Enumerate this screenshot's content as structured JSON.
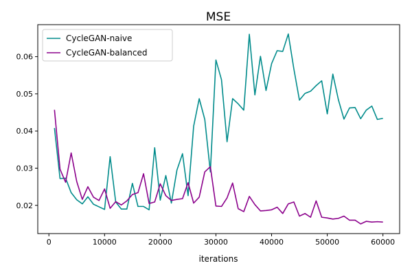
{
  "chart_data": {
    "type": "line",
    "title": "MSE",
    "xlabel": "iterations",
    "ylabel": "",
    "xlim": [
      -2000,
      63000
    ],
    "ylim": [
      0.0124,
      0.0686
    ],
    "xticks": [
      0,
      10000,
      20000,
      30000,
      40000,
      50000,
      60000
    ],
    "xtick_labels": [
      "0",
      "10000",
      "20000",
      "30000",
      "40000",
      "50000",
      "60000"
    ],
    "yticks": [
      0.02,
      0.03,
      0.04,
      0.05,
      0.06
    ],
    "ytick_labels": [
      "0.02",
      "0.03",
      "0.04",
      "0.05",
      "0.06"
    ],
    "grid": false,
    "legend_position": "top-left",
    "x": [
      1000,
      2000,
      3000,
      4000,
      5000,
      6000,
      7000,
      8000,
      9000,
      10000,
      11000,
      12000,
      13000,
      14000,
      15000,
      16000,
      17000,
      18000,
      19000,
      20000,
      21000,
      22000,
      23000,
      24000,
      25000,
      26000,
      27000,
      28000,
      29000,
      30000,
      31000,
      32000,
      33000,
      34000,
      35000,
      36000,
      37000,
      38000,
      39000,
      40000,
      41000,
      42000,
      43000,
      44000,
      45000,
      46000,
      47000,
      48000,
      49000,
      50000,
      51000,
      52000,
      53000,
      54000,
      55000,
      56000,
      57000,
      58000,
      59000,
      60000
    ],
    "series": [
      {
        "name": "CycleGAN-naive",
        "color": "#008b8b",
        "values": [
          0.0408,
          0.0272,
          0.0273,
          0.0234,
          0.0215,
          0.0204,
          0.0223,
          0.0203,
          0.0196,
          0.0189,
          0.0331,
          0.0209,
          0.019,
          0.019,
          0.0259,
          0.0197,
          0.0197,
          0.0188,
          0.0355,
          0.0214,
          0.028,
          0.0206,
          0.0295,
          0.0339,
          0.0226,
          0.0413,
          0.0487,
          0.0431,
          0.029,
          0.0591,
          0.0538,
          0.0371,
          0.0487,
          0.0473,
          0.0456,
          0.066,
          0.0497,
          0.0601,
          0.0509,
          0.0581,
          0.0616,
          0.0614,
          0.0661,
          0.0567,
          0.0483,
          0.0501,
          0.0507,
          0.0522,
          0.0535,
          0.0446,
          0.0553,
          0.0484,
          0.0432,
          0.0462,
          0.0463,
          0.0433,
          0.0456,
          0.0467,
          0.0431,
          0.0434
        ]
      },
      {
        "name": "CycleGAN-balanced",
        "color": "#8b008b",
        "values": [
          0.0457,
          0.0297,
          0.0262,
          0.0341,
          0.0264,
          0.0216,
          0.025,
          0.0222,
          0.0213,
          0.0244,
          0.0192,
          0.021,
          0.0201,
          0.0212,
          0.0229,
          0.0234,
          0.0285,
          0.0205,
          0.0209,
          0.0258,
          0.0226,
          0.0213,
          0.0216,
          0.0218,
          0.0261,
          0.0206,
          0.0222,
          0.029,
          0.0304,
          0.0198,
          0.0197,
          0.022,
          0.026,
          0.0191,
          0.0183,
          0.0224,
          0.0202,
          0.0185,
          0.0186,
          0.0188,
          0.0195,
          0.0178,
          0.0204,
          0.0209,
          0.0171,
          0.0178,
          0.0168,
          0.0212,
          0.0168,
          0.0166,
          0.0163,
          0.0165,
          0.0171,
          0.016,
          0.016,
          0.015,
          0.0157,
          0.0155,
          0.0156,
          0.0155
        ]
      }
    ]
  }
}
